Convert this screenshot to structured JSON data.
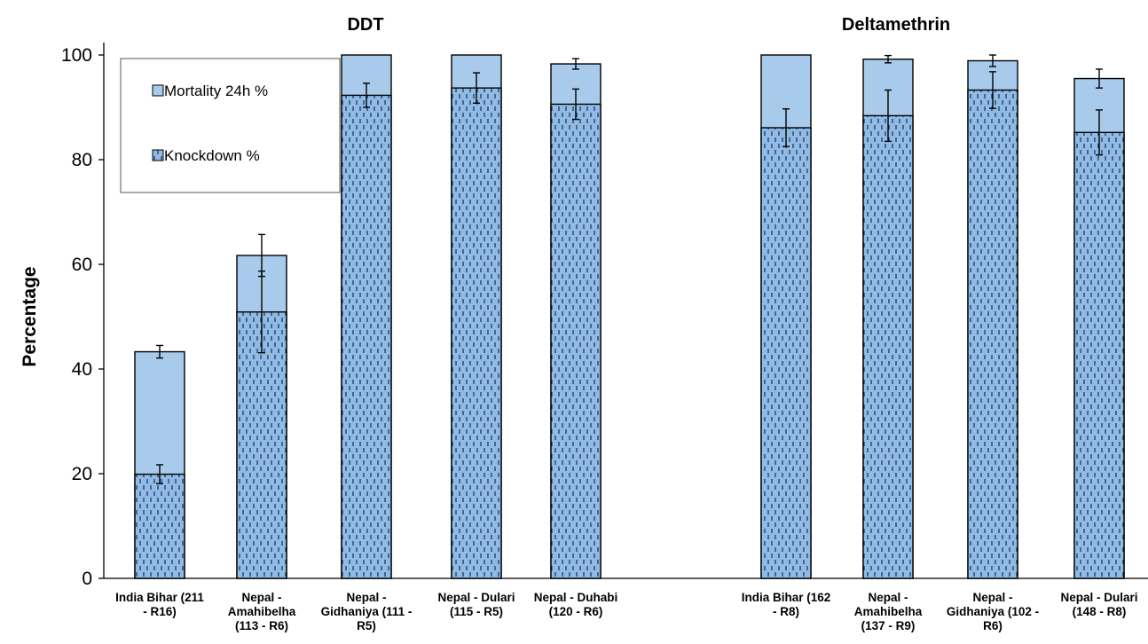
{
  "chart_data": {
    "type": "bar",
    "stacked_overlay": true,
    "ylabel": "Percentage",
    "ylim": [
      0,
      100
    ],
    "yticks": [
      0,
      20,
      40,
      60,
      80,
      100
    ],
    "grid": false,
    "legend_position": "top-left",
    "colors": {
      "mortality": "#a9cbeb",
      "knockdown": "#8fbbe6",
      "dash": "#1a2f4a",
      "outline": "#000000"
    },
    "series": [
      {
        "name": "Mortality 24h %",
        "pattern": "solid"
      },
      {
        "name": "Knockdown %",
        "pattern": "dotted"
      }
    ],
    "groups": [
      {
        "title": "DDT",
        "categories": [
          {
            "label": [
              "India Bihar (211",
              "- R16)"
            ],
            "mortality": 43.3,
            "mortality_err": 1.2,
            "knockdown": 19.9,
            "knockdown_err": 1.8
          },
          {
            "label": [
              "Nepal -",
              "Amahibelha",
              "(113 - R6)"
            ],
            "mortality": 61.7,
            "mortality_err": 4.0,
            "knockdown": 50.9,
            "knockdown_err": 7.8
          },
          {
            "label": [
              "Nepal -",
              "Gidhaniya (111 -",
              "R5)"
            ],
            "mortality": 100,
            "mortality_err": 0,
            "knockdown": 92.3,
            "knockdown_err": 2.3
          },
          {
            "label": [
              "Nepal - Dulari",
              "(115 - R5)"
            ],
            "mortality": 100,
            "mortality_err": 0,
            "knockdown": 93.7,
            "knockdown_err": 2.9
          },
          {
            "label": [
              "Nepal -  Duhabi",
              "(120 - R6)"
            ],
            "mortality": 98.3,
            "mortality_err": 1.0,
            "knockdown": 90.6,
            "knockdown_err": 2.9
          }
        ]
      },
      {
        "title": "Deltamethrin",
        "categories": [
          {
            "label": [
              "India Bihar (162",
              "- R8)"
            ],
            "mortality": 100,
            "mortality_err": 0,
            "knockdown": 86.1,
            "knockdown_err": 3.6
          },
          {
            "label": [
              "Nepal -",
              "Amahibelha",
              "(137 - R9)"
            ],
            "mortality": 99.2,
            "mortality_err": 0.7,
            "knockdown": 88.4,
            "knockdown_err": 4.9
          },
          {
            "label": [
              "Nepal -",
              "Gidhaniya (102 -",
              "R6)"
            ],
            "mortality": 98.9,
            "mortality_err": 1.1,
            "knockdown": 93.3,
            "knockdown_err": 3.5
          },
          {
            "label": [
              "Nepal - Dulari",
              "(148 - R8)"
            ],
            "mortality": 95.5,
            "mortality_err": 1.8,
            "knockdown": 85.2,
            "knockdown_err": 4.3
          }
        ]
      }
    ]
  }
}
